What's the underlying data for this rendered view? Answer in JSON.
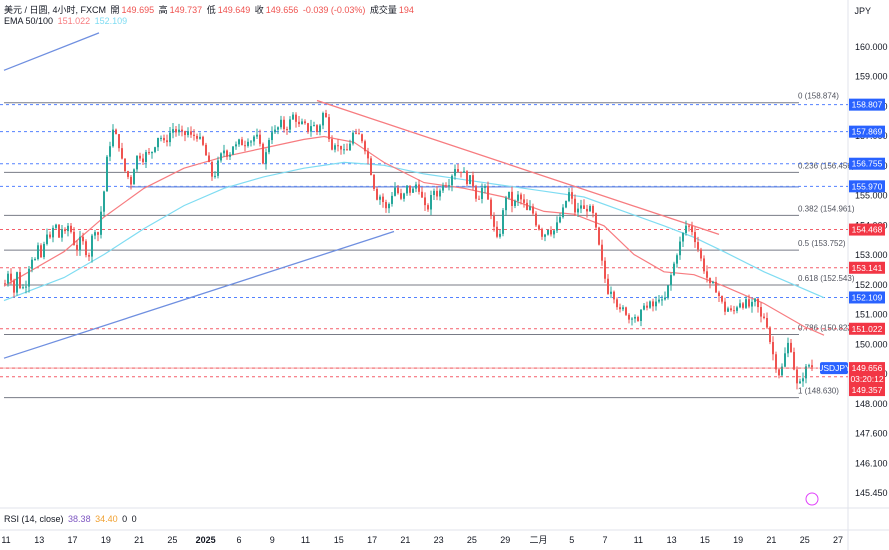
{
  "legend": {
    "symbol": "美元 / 日圆, 4小时, FXCM",
    "open_label": "開",
    "open": "149.695",
    "high_label": "高",
    "high": "149.737",
    "low_label": "低",
    "low": "149.649",
    "close_label": "收",
    "close": "149.656",
    "change": "-0.039 (-0.03%)",
    "volume_label": "成交量",
    "volume": "194",
    "ema_label": "EMA 50/100",
    "ema50": "151.022",
    "ema100": "152.109"
  },
  "currency": "JPY",
  "rsi": {
    "label": "RSI (14, close)",
    "v1": "38.38",
    "v2": "34.40",
    "v3": "0",
    "v4": "0"
  },
  "colors": {
    "up": "#26a69a",
    "down": "#ef5350",
    "ema50": "#f77c80",
    "ema100": "#7fdcf2",
    "trend": "#6f8fe0",
    "accent_blue": "#2962ff",
    "accent_red": "#f23645"
  },
  "chart_data": {
    "type": "candlestick",
    "x_ticks": [
      "11",
      "13",
      "17",
      "19",
      "21",
      "25",
      "2025",
      "6",
      "9",
      "11",
      "15",
      "17",
      "21",
      "23",
      "25",
      "29",
      "二月",
      "5",
      "7",
      "11",
      "13",
      "15",
      "19",
      "21",
      "25",
      "27"
    ],
    "y_ticks": [
      "160.000",
      "159.000",
      "158.000",
      "157.000",
      "156.000",
      "155.000",
      "154.000",
      "153.000",
      "152.000",
      "151.000",
      "150.000",
      "149.000",
      "148.000",
      "147.600",
      "146.100",
      "145.450"
    ],
    "ylim": [
      144.9,
      161.4
    ],
    "fib_levels": [
      {
        "label": "0 (158.874)",
        "value": 158.874
      },
      {
        "label": "0.236 (156.456)",
        "value": 156.456
      },
      {
        "label": "0.382 (154.961)",
        "value": 154.961
      },
      {
        "label": "0.5 (153.752)",
        "value": 153.752
      },
      {
        "label": "0.618 (152.543)",
        "value": 152.543
      },
      {
        "label": "0.786 (150.822)",
        "value": 150.822
      },
      {
        "label": "1 (148.630)",
        "value": 148.63
      }
    ],
    "price_tags": [
      {
        "label": "158.807",
        "value": 158.807,
        "color": "#2962ff"
      },
      {
        "label": "157.869",
        "value": 157.869,
        "color": "#2962ff"
      },
      {
        "label": "156.755",
        "value": 156.755,
        "color": "#2962ff"
      },
      {
        "label": "155.970",
        "value": 155.97,
        "color": "#2962ff"
      },
      {
        "label": "154.468",
        "value": 154.468,
        "color": "#f23645"
      },
      {
        "label": "153.141",
        "value": 153.141,
        "color": "#f23645"
      },
      {
        "label": "152.109",
        "value": 152.109,
        "color": "#2962ff"
      },
      {
        "label": "151.022",
        "value": 151.022,
        "color": "#f23645"
      },
      {
        "label": "149.656",
        "value": 149.656,
        "color": "#f23645"
      },
      {
        "label": "03:20:12",
        "value": 149.5,
        "color": "#f23645"
      },
      {
        "label": "149.357",
        "value": 149.357,
        "color": "#f23645"
      }
    ],
    "last_symbol": "USDJPY",
    "close_path": [
      [
        0,
        152.6
      ],
      [
        3,
        153.0
      ],
      [
        6,
        152.8
      ],
      [
        9,
        152.3
      ],
      [
        11,
        152.9
      ],
      [
        13,
        153.0
      ],
      [
        15,
        152.5
      ],
      [
        17,
        152.6
      ],
      [
        19,
        152.3
      ],
      [
        21,
        152.6
      ],
      [
        24,
        153.2
      ],
      [
        27,
        153.5
      ],
      [
        30,
        153.4
      ],
      [
        33,
        153.8
      ],
      [
        36,
        153.5
      ],
      [
        39,
        153.9
      ],
      [
        42,
        154.4
      ],
      [
        45,
        154.1
      ],
      [
        48,
        154.5
      ],
      [
        51,
        154.6
      ],
      [
        54,
        154.2
      ],
      [
        57,
        154.5
      ],
      [
        60,
        154.3
      ],
      [
        63,
        154.6
      ],
      [
        66,
        154.4
      ],
      [
        69,
        154.0
      ],
      [
        72,
        153.8
      ],
      [
        75,
        154.1
      ],
      [
        78,
        154.0
      ],
      [
        81,
        153.7
      ],
      [
        84,
        153.6
      ],
      [
        87,
        154.2
      ],
      [
        90,
        154.5
      ],
      [
        93,
        154.3
      ],
      [
        96,
        155.1
      ],
      [
        99,
        155.8
      ],
      [
        102,
        156.9
      ],
      [
        104,
        157.3
      ],
      [
        106,
        157.6
      ],
      [
        108,
        157.9
      ],
      [
        110,
        157.8
      ],
      [
        112,
        157.6
      ],
      [
        114,
        157.4
      ],
      [
        116,
        157.0
      ],
      [
        118,
        156.7
      ],
      [
        120,
        156.5
      ],
      [
        122,
        156.2
      ],
      [
        124,
        156.4
      ],
      [
        126,
        156.1
      ],
      [
        128,
        156.5
      ],
      [
        130,
        156.8
      ],
      [
        133,
        157.1
      ],
      [
        136,
        157.0
      ],
      [
        139,
        156.9
      ],
      [
        142,
        157.2
      ],
      [
        145,
        157.0
      ],
      [
        148,
        157.3
      ],
      [
        151,
        157.5
      ],
      [
        154,
        157.8
      ],
      [
        157,
        157.6
      ],
      [
        160,
        157.4
      ],
      [
        163,
        157.7
      ],
      [
        166,
        157.9
      ],
      [
        169,
        158.0
      ],
      [
        172,
        157.8
      ],
      [
        175,
        157.9
      ],
      [
        178,
        157.7
      ],
      [
        181,
        157.8
      ],
      [
        184,
        157.9
      ],
      [
        187,
        157.6
      ],
      [
        190,
        157.8
      ],
      [
        193,
        157.7
      ],
      [
        196,
        157.5
      ],
      [
        199,
        157.3
      ],
      [
        202,
        156.9
      ],
      [
        205,
        156.6
      ],
      [
        208,
        156.2
      ],
      [
        211,
        156.5
      ],
      [
        214,
        156.9
      ],
      [
        217,
        157.1
      ],
      [
        220,
        157.3
      ],
      [
        223,
        157.0
      ],
      [
        226,
        157.2
      ],
      [
        229,
        157.5
      ],
      [
        232,
        157.3
      ],
      [
        235,
        157.6
      ],
      [
        238,
        157.4
      ],
      [
        241,
        157.5
      ],
      [
        244,
        157.7
      ],
      [
        247,
        157.5
      ],
      [
        250,
        157.8
      ],
      [
        253,
        157.6
      ],
      [
        256,
        157.2
      ],
      [
        259,
        156.7
      ],
      [
        262,
        157.3
      ],
      [
        265,
        157.8
      ],
      [
        268,
        158.0
      ],
      [
        271,
        157.8
      ],
      [
        274,
        158.1
      ],
      [
        277,
        158.2
      ],
      [
        280,
        157.9
      ],
      [
        283,
        158.1
      ],
      [
        286,
        158.3
      ],
      [
        289,
        158.5
      ],
      [
        292,
        158.2
      ],
      [
        295,
        158.0
      ],
      [
        298,
        158.2
      ],
      [
        301,
        158.0
      ],
      [
        304,
        157.9
      ],
      [
        307,
        158.2
      ],
      [
        310,
        158.0
      ],
      [
        313,
        157.8
      ],
      [
        316,
        158.3
      ],
      [
        319,
        158.6
      ],
      [
        322,
        158.2
      ],
      [
        325,
        157.5
      ],
      [
        328,
        157.3
      ],
      [
        331,
        157.6
      ],
      [
        334,
        157.2
      ],
      [
        337,
        157.4
      ],
      [
        340,
        157.0
      ],
      [
        343,
        157.3
      ],
      [
        346,
        157.6
      ],
      [
        349,
        157.9
      ],
      [
        352,
        157.6
      ],
      [
        355,
        157.8
      ],
      [
        358,
        157.5
      ],
      [
        361,
        157.2
      ],
      [
        364,
        156.8
      ],
      [
        367,
        156.3
      ],
      [
        370,
        155.8
      ],
      [
        373,
        155.5
      ],
      [
        376,
        155.7
      ],
      [
        379,
        155.3
      ],
      [
        382,
        155.1
      ],
      [
        385,
        155.5
      ],
      [
        388,
        155.8
      ],
      [
        391,
        156.0
      ],
      [
        394,
        155.6
      ],
      [
        397,
        155.4
      ],
      [
        400,
        155.8
      ],
      [
        403,
        156.0
      ],
      [
        406,
        155.7
      ],
      [
        409,
        155.9
      ],
      [
        412,
        156.1
      ],
      [
        415,
        155.8
      ],
      [
        418,
        155.4
      ],
      [
        421,
        155.1
      ],
      [
        424,
        155.3
      ],
      [
        427,
        155.7
      ],
      [
        430,
        155.9
      ],
      [
        433,
        155.6
      ],
      [
        436,
        155.9
      ],
      [
        439,
        156.2
      ],
      [
        442,
        156.0
      ],
      [
        445,
        156.2
      ],
      [
        448,
        156.5
      ],
      [
        451,
        156.7
      ],
      [
        454,
        156.4
      ],
      [
        457,
        156.6
      ],
      [
        460,
        156.3
      ],
      [
        463,
        156.1
      ],
      [
        466,
        156.3
      ],
      [
        469,
        155.9
      ],
      [
        472,
        155.5
      ],
      [
        475,
        155.7
      ],
      [
        478,
        156.0
      ],
      [
        481,
        155.8
      ],
      [
        484,
        155.3
      ],
      [
        487,
        154.9
      ],
      [
        490,
        154.3
      ],
      [
        493,
        154.0
      ],
      [
        496,
        154.6
      ],
      [
        499,
        155.3
      ],
      [
        502,
        155.8
      ],
      [
        505,
        155.6
      ],
      [
        508,
        155.2
      ],
      [
        511,
        155.5
      ],
      [
        514,
        155.7
      ],
      [
        517,
        155.4
      ],
      [
        520,
        155.3
      ],
      [
        523,
        155.0
      ],
      [
        526,
        155.3
      ],
      [
        529,
        154.9
      ],
      [
        532,
        154.6
      ],
      [
        535,
        154.5
      ],
      [
        538,
        154.2
      ],
      [
        541,
        154.4
      ],
      [
        544,
        154.6
      ],
      [
        547,
        154.3
      ],
      [
        550,
        154.5
      ],
      [
        553,
        154.7
      ],
      [
        556,
        155.0
      ],
      [
        559,
        155.2
      ],
      [
        562,
        155.6
      ],
      [
        565,
        155.8
      ],
      [
        568,
        155.3
      ],
      [
        571,
        155.0
      ],
      [
        574,
        155.2
      ],
      [
        577,
        155.4
      ],
      [
        580,
        155.0
      ],
      [
        583,
        155.3
      ],
      [
        586,
        155.1
      ],
      [
        589,
        154.9
      ],
      [
        592,
        154.2
      ],
      [
        595,
        153.7
      ],
      [
        598,
        153.1
      ],
      [
        601,
        152.6
      ],
      [
        604,
        152.2
      ],
      [
        607,
        152.5
      ],
      [
        610,
        152.0
      ],
      [
        613,
        151.8
      ],
      [
        616,
        151.5
      ],
      [
        619,
        151.8
      ],
      [
        622,
        151.5
      ],
      [
        625,
        151.3
      ],
      [
        628,
        151.6
      ],
      [
        631,
        151.4
      ],
      [
        634,
        151.1
      ],
      [
        637,
        151.8
      ],
      [
        640,
        152.0
      ],
      [
        643,
        151.6
      ],
      [
        646,
        152.0
      ],
      [
        649,
        151.7
      ],
      [
        652,
        152.0
      ],
      [
        655,
        152.2
      ],
      [
        658,
        151.8
      ],
      [
        661,
        152.2
      ],
      [
        664,
        152.6
      ],
      [
        667,
        153.0
      ],
      [
        670,
        153.4
      ],
      [
        673,
        153.8
      ],
      [
        676,
        154.1
      ],
      [
        679,
        154.4
      ],
      [
        682,
        154.7
      ],
      [
        685,
        154.5
      ],
      [
        688,
        154.4
      ],
      [
        691,
        154.0
      ],
      [
        694,
        153.7
      ],
      [
        697,
        153.3
      ],
      [
        700,
        153.0
      ],
      [
        703,
        152.7
      ],
      [
        706,
        152.4
      ],
      [
        709,
        152.6
      ],
      [
        712,
        152.3
      ],
      [
        715,
        152.1
      ],
      [
        718,
        151.8
      ],
      [
        721,
        151.6
      ],
      [
        724,
        151.8
      ],
      [
        727,
        151.5
      ],
      [
        730,
        151.7
      ],
      [
        733,
        151.9
      ],
      [
        736,
        152.0
      ],
      [
        739,
        151.8
      ],
      [
        742,
        152.0
      ],
      [
        745,
        151.7
      ],
      [
        748,
        151.9
      ],
      [
        751,
        152.0
      ],
      [
        754,
        151.6
      ],
      [
        757,
        151.3
      ],
      [
        760,
        151.5
      ],
      [
        763,
        151.0
      ],
      [
        766,
        150.4
      ],
      [
        769,
        150.0
      ],
      [
        772,
        149.6
      ],
      [
        775,
        149.4
      ],
      [
        778,
        149.8
      ],
      [
        781,
        150.3
      ],
      [
        784,
        150.6
      ],
      [
        787,
        150.2
      ],
      [
        790,
        149.4
      ],
      [
        793,
        148.9
      ],
      [
        796,
        149.2
      ],
      [
        799,
        149.5
      ],
      [
        802,
        149.7
      ],
      [
        805,
        149.8
      ],
      [
        808,
        149.66
      ]
    ],
    "ema50": [
      [
        0,
        152.5
      ],
      [
        60,
        153.7
      ],
      [
        100,
        154.9
      ],
      [
        140,
        155.9
      ],
      [
        180,
        156.6
      ],
      [
        220,
        157.0
      ],
      [
        260,
        157.3
      ],
      [
        300,
        157.6
      ],
      [
        320,
        157.7
      ],
      [
        350,
        157.5
      ],
      [
        380,
        156.8
      ],
      [
        420,
        156.1
      ],
      [
        460,
        155.9
      ],
      [
        500,
        155.6
      ],
      [
        540,
        155.1
      ],
      [
        570,
        155.0
      ],
      [
        600,
        154.6
      ],
      [
        630,
        153.6
      ],
      [
        660,
        153.0
      ],
      [
        690,
        152.9
      ],
      [
        720,
        152.5
      ],
      [
        760,
        151.9
      ],
      [
        800,
        151.1
      ],
      [
        820,
        150.8
      ]
    ],
    "ema100": [
      [
        0,
        152.0
      ],
      [
        60,
        152.8
      ],
      [
        100,
        153.6
      ],
      [
        140,
        154.5
      ],
      [
        180,
        155.3
      ],
      [
        220,
        155.9
      ],
      [
        260,
        156.3
      ],
      [
        300,
        156.6
      ],
      [
        340,
        156.8
      ],
      [
        380,
        156.7
      ],
      [
        420,
        156.4
      ],
      [
        460,
        156.2
      ],
      [
        500,
        156.0
      ],
      [
        540,
        155.8
      ],
      [
        580,
        155.6
      ],
      [
        620,
        155.1
      ],
      [
        660,
        154.6
      ],
      [
        690,
        154.2
      ],
      [
        720,
        153.7
      ],
      [
        760,
        153.0
      ],
      [
        800,
        152.4
      ],
      [
        820,
        152.1
      ]
    ],
    "trend_lines": [
      {
        "color": "#6f8fe0",
        "from": [
          0,
          160.0
        ],
        "to": [
          95,
          161.3
        ]
      },
      {
        "color": "#6f8fe0",
        "from": [
          0,
          150.0
        ],
        "to": [
          390,
          154.4
        ]
      },
      {
        "color": "#f77c80",
        "from": [
          313,
          158.95
        ],
        "to": [
          715,
          154.3
        ]
      }
    ],
    "support_line": {
      "value": 155.95,
      "from": 124,
      "to": 795
    },
    "fib_line_from": 0,
    "fib_line_to": 795
  }
}
